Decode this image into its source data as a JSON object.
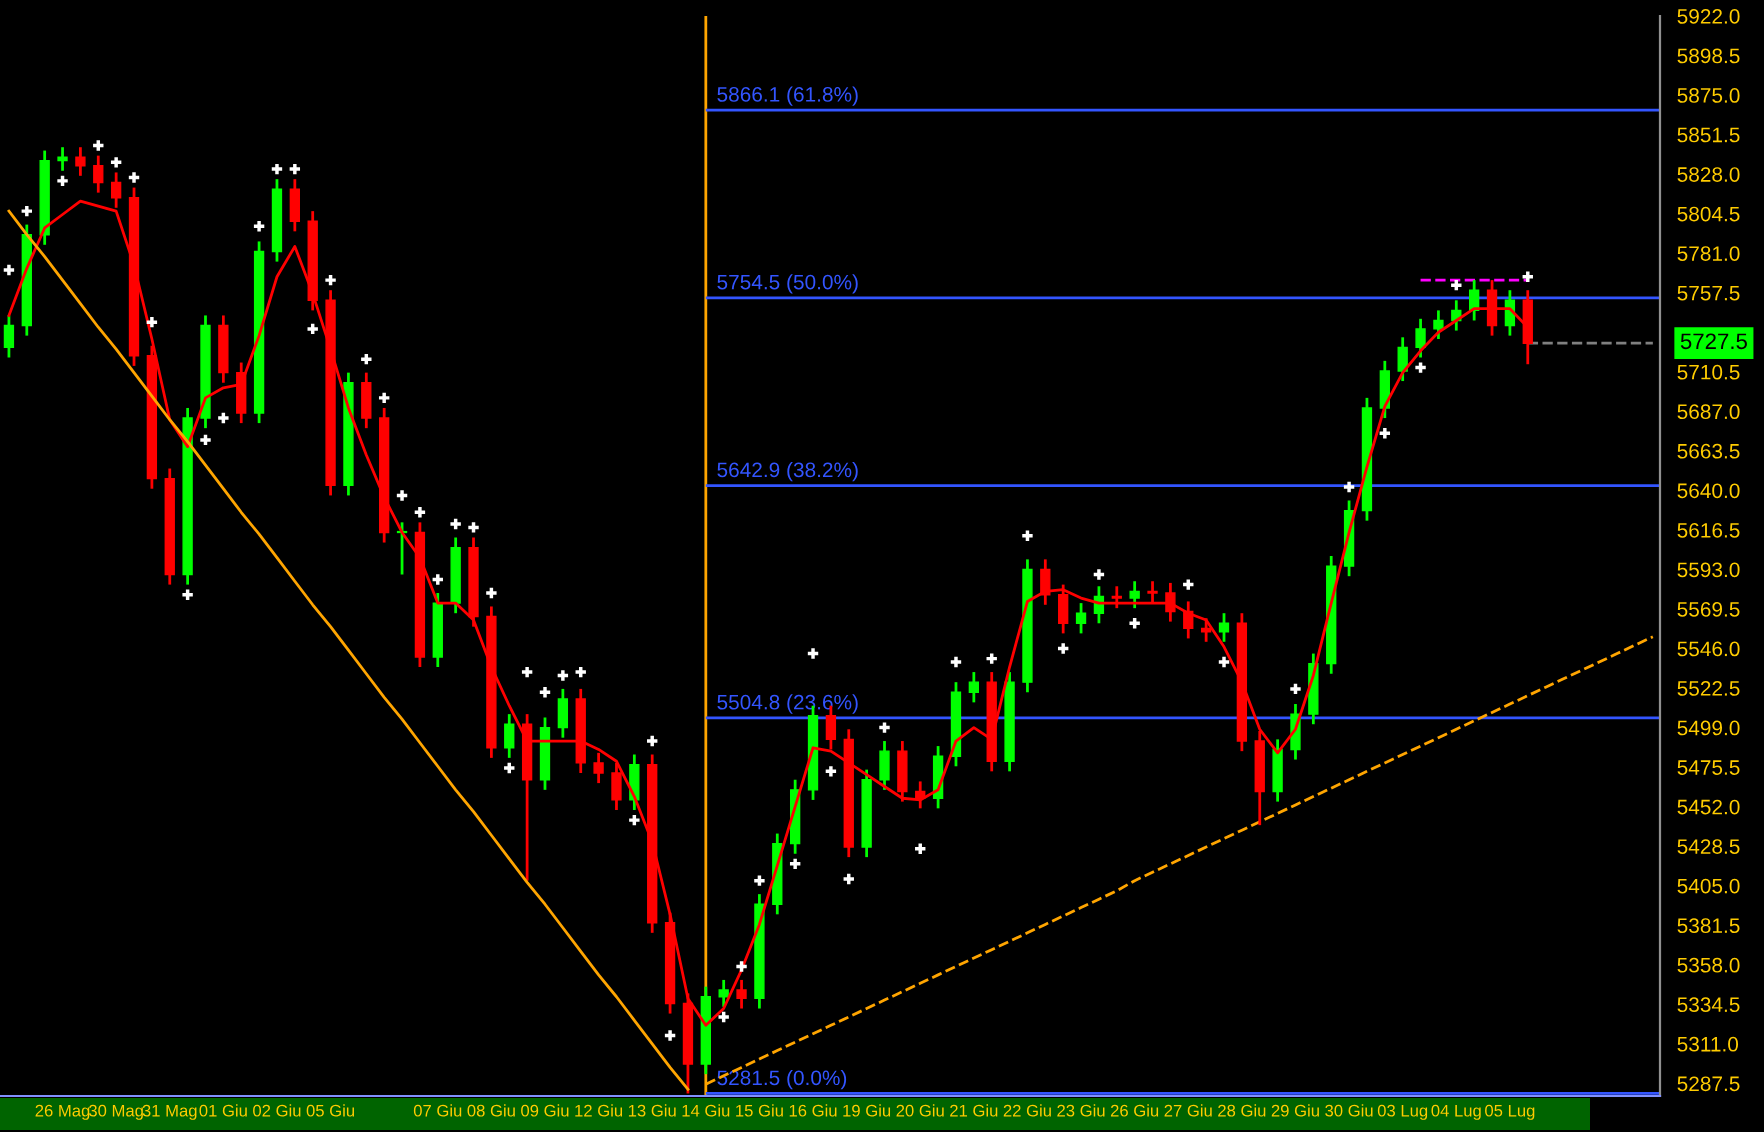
{
  "chart_data": {
    "type": "candlestick",
    "categories": [
      null,
      null,
      null,
      "26 Mag",
      null,
      null,
      "30 Mag",
      null,
      null,
      "31 Mag",
      null,
      null,
      "01 Giu",
      null,
      null,
      "02 Giu",
      null,
      null,
      "05 Giu",
      null,
      null,
      null,
      null,
      null,
      "07 Giu",
      null,
      null,
      "08 Giu",
      null,
      null,
      "09 Giu",
      null,
      null,
      "12 Giu",
      null,
      null,
      "13 Giu",
      null,
      null,
      "14 Giu",
      null,
      null,
      "15 Giu",
      null,
      null,
      "16 Giu",
      null,
      null,
      "19 Giu",
      null,
      null,
      "20 Giu",
      null,
      null,
      "21 Giu",
      null,
      null,
      "22 Giu",
      null,
      null,
      "23 Giu",
      null,
      null,
      "26 Giu",
      null,
      null,
      "27 Giu",
      null,
      null,
      "28 Giu",
      null,
      null,
      "29 Giu",
      null,
      null,
      "30 Giu",
      null,
      null,
      "03 Lug",
      null,
      null,
      "04 Lug",
      null,
      null,
      "05 Lug",
      null,
      null,
      null,
      null,
      null,
      null,
      null,
      null
    ],
    "ohlc": [
      [
        5725,
        5744,
        5719,
        5738
      ],
      [
        5738,
        5798,
        5732,
        5792
      ],
      [
        5792,
        5842,
        5786,
        5836
      ],
      [
        5836,
        5844,
        5830,
        5838
      ],
      [
        5838,
        5844,
        5827,
        5833
      ],
      [
        5833,
        5839,
        5817,
        5823
      ],
      [
        5823,
        5829,
        5808,
        5814
      ],
      [
        5814,
        5820,
        5714,
        5720
      ],
      [
        5720,
        5726,
        5641,
        5647
      ],
      [
        5647,
        5653,
        5584,
        5590
      ],
      [
        5590,
        5689,
        5584,
        5683
      ],
      [
        5683,
        5744,
        5677,
        5738
      ],
      [
        5738,
        5744,
        5704,
        5710
      ],
      [
        5710,
        5716,
        5680,
        5686
      ],
      [
        5686,
        5788,
        5680,
        5782
      ],
      [
        5782,
        5825,
        5776,
        5819
      ],
      [
        5819,
        5825,
        5794,
        5800
      ],
      [
        5800,
        5806,
        5747,
        5753
      ],
      [
        5753,
        5759,
        5637,
        5643
      ],
      [
        5643,
        5710,
        5637,
        5704
      ],
      [
        5704,
        5710,
        5677,
        5683
      ],
      [
        5683,
        5689,
        5609,
        5615
      ],
      [
        5615,
        5621,
        5590,
        5615
      ],
      [
        5615,
        5621,
        5535,
        5541
      ],
      [
        5541,
        5579,
        5535,
        5573
      ],
      [
        5573,
        5612,
        5567,
        5606
      ],
      [
        5606,
        5612,
        5559,
        5565
      ],
      [
        5565,
        5571,
        5481,
        5487
      ],
      [
        5487,
        5507,
        5481,
        5501
      ],
      [
        5501,
        5507,
        5408,
        5468
      ],
      [
        5468,
        5505,
        5462,
        5499
      ],
      [
        5499,
        5522,
        5493,
        5516
      ],
      [
        5516,
        5522,
        5472,
        5478
      ],
      [
        5478,
        5484,
        5466,
        5472
      ],
      [
        5472,
        5478,
        5450,
        5456
      ],
      [
        5456,
        5483,
        5450,
        5477
      ],
      [
        5477,
        5483,
        5377,
        5383
      ],
      [
        5383,
        5389,
        5329,
        5335
      ],
      [
        5335,
        5341,
        5281.5,
        5299
      ],
      [
        5299,
        5345,
        5293,
        5339
      ],
      [
        5339,
        5349,
        5333,
        5343
      ],
      [
        5343,
        5349,
        5332,
        5338
      ],
      [
        5338,
        5400,
        5332,
        5394
      ],
      [
        5394,
        5436,
        5388,
        5430
      ],
      [
        5430,
        5468,
        5424,
        5462
      ],
      [
        5462,
        5512,
        5456,
        5506
      ],
      [
        5506,
        5512,
        5486,
        5492
      ],
      [
        5492,
        5498,
        5422,
        5428
      ],
      [
        5428,
        5474,
        5422,
        5468
      ],
      [
        5468,
        5491,
        5462,
        5485
      ],
      [
        5485,
        5491,
        5455,
        5461
      ],
      [
        5461,
        5467,
        5451,
        5457
      ],
      [
        5457,
        5488,
        5451,
        5482
      ],
      [
        5482,
        5526,
        5476,
        5520
      ],
      [
        5520,
        5532,
        5514,
        5526
      ],
      [
        5526,
        5532,
        5473,
        5479
      ],
      [
        5479,
        5532,
        5473,
        5526
      ],
      [
        5526,
        5599,
        5520,
        5593
      ],
      [
        5593,
        5599,
        5572,
        5578
      ],
      [
        5578,
        5584,
        5555,
        5561
      ],
      [
        5561,
        5573,
        5555,
        5567
      ],
      [
        5567,
        5583,
        5561,
        5577
      ],
      [
        5577,
        5583,
        5570,
        5576
      ],
      [
        5576,
        5586,
        5570,
        5580
      ],
      [
        5580,
        5586,
        5573,
        5579
      ],
      [
        5579,
        5585,
        5562,
        5568
      ],
      [
        5568,
        5574,
        5552,
        5558
      ],
      [
        5558,
        5564,
        5550,
        5556
      ],
      [
        5556,
        5567,
        5550,
        5561
      ],
      [
        5561,
        5567,
        5485,
        5491
      ],
      [
        5491,
        5497,
        5441,
        5461
      ],
      [
        5461,
        5492,
        5455,
        5486
      ],
      [
        5486,
        5513,
        5480,
        5507
      ],
      [
        5507,
        5543,
        5501,
        5537
      ],
      [
        5537,
        5601,
        5531,
        5595
      ],
      [
        5595,
        5634,
        5589,
        5628
      ],
      [
        5628,
        5695,
        5622,
        5689
      ],
      [
        5689,
        5717,
        5683,
        5711
      ],
      [
        5711,
        5731,
        5705,
        5725
      ],
      [
        5725,
        5742,
        5719,
        5736
      ],
      [
        5736,
        5747,
        5730,
        5741
      ],
      [
        5741,
        5753,
        5735,
        5747
      ],
      [
        5747,
        5765,
        5741,
        5759
      ],
      [
        5759,
        5765,
        5732,
        5738
      ],
      [
        5738,
        5759,
        5732,
        5753
      ],
      [
        5753,
        5759,
        5715,
        5727.5
      ],
      null,
      null,
      null,
      null,
      null,
      null,
      null
    ],
    "series": [
      {
        "type": "line",
        "color": "#ff0000",
        "line_style": "solid",
        "marker": "none",
        "values": [
          5744,
          5772,
          5796,
          5804,
          5812,
          5809,
          5806,
          5774,
          5730,
          5682,
          5666,
          5695,
          5701,
          5703,
          5732,
          5767,
          5785,
          5757,
          5724,
          5689,
          5661,
          5636,
          5615,
          5600,
          5573,
          5573,
          5563,
          5535,
          5512,
          5491,
          5491,
          5491,
          5491,
          5486,
          5479,
          5458,
          5431,
          5388,
          5338,
          5322,
          5332,
          5355,
          5382,
          5417,
          5452,
          5487,
          5485,
          5478,
          5471,
          5464,
          5457,
          5456,
          5462,
          5491,
          5499,
          5492,
          5535,
          5574,
          5580,
          5581,
          5576,
          5573,
          5573,
          5573,
          5573,
          5573,
          5567,
          5563,
          5547,
          5526,
          5498,
          5484,
          5498,
          5530,
          5573,
          5615,
          5654,
          5690,
          5710,
          5723,
          5734,
          5741,
          5748,
          5748,
          5748,
          5737,
          null,
          null,
          null,
          null,
          null,
          null,
          null
        ]
      },
      {
        "type": "scatter",
        "color": "#ffffff",
        "marker": "cross",
        "values": [
          5771,
          5806,
          null,
          5824,
          null,
          5845,
          5835,
          5826,
          5740,
          null,
          5578,
          5670,
          5683,
          null,
          5797,
          5831,
          5831,
          5736,
          5765,
          null,
          5718,
          5695,
          5637,
          5627,
          5587,
          5620,
          5618,
          5579,
          5475,
          5532,
          5520,
          5530,
          5532,
          null,
          null,
          5444,
          5491,
          5316,
          null,
          null,
          5327,
          5357,
          5408,
          null,
          5418,
          5543,
          5473,
          5409,
          null,
          5499,
          null,
          5427,
          null,
          5538,
          null,
          5540,
          null,
          5613,
          null,
          5546,
          null,
          5590,
          null,
          5561,
          null,
          null,
          5584,
          null,
          5538,
          null,
          null,
          null,
          5522,
          null,
          null,
          5642,
          null,
          5674,
          null,
          5713,
          null,
          5762,
          null,
          null,
          null,
          5767,
          null,
          null,
          null,
          null,
          null,
          null,
          null
        ]
      },
      {
        "type": "line",
        "color": "#ffa500",
        "line_style": "solid",
        "marker": "none",
        "values": [
          5806,
          5792,
          5779,
          5765,
          5751,
          5737,
          5724,
          5710,
          5696,
          5682,
          5669,
          5655,
          5641,
          5627,
          5614,
          5600,
          5586,
          5572,
          5559,
          5545,
          5531,
          5517,
          5504,
          5490,
          5476,
          5462,
          5449,
          5435,
          5421,
          5407,
          5394,
          5380,
          5366,
          5352,
          5339,
          5325,
          5311,
          5297,
          5284,
          null,
          null,
          null,
          null,
          null,
          null,
          null,
          null,
          null,
          null,
          null,
          null,
          null,
          null,
          null,
          null,
          null,
          null,
          null,
          null,
          null,
          null,
          null,
          null,
          null,
          null,
          null,
          null,
          null,
          null,
          null,
          null,
          null,
          null,
          null,
          null,
          null,
          null,
          null,
          null,
          null,
          null,
          null,
          null,
          null,
          null,
          null,
          null,
          null,
          null,
          null,
          null,
          null,
          null
        ]
      },
      {
        "type": "line",
        "color": "#ffa500",
        "line_style": "dashed",
        "marker": "none",
        "values": [
          null,
          null,
          null,
          null,
          null,
          null,
          null,
          null,
          null,
          null,
          null,
          null,
          null,
          null,
          null,
          null,
          null,
          null,
          null,
          null,
          null,
          null,
          null,
          null,
          null,
          null,
          null,
          null,
          null,
          null,
          null,
          null,
          null,
          null,
          null,
          null,
          null,
          null,
          null,
          5287,
          5292,
          5297,
          5302,
          5307,
          5312,
          5317,
          5322,
          5327,
          5332,
          5337,
          5342,
          5347,
          5352,
          5357,
          5362,
          5367,
          5372,
          5377,
          5382,
          5387,
          5392,
          5397,
          5402,
          5408,
          5413,
          5418,
          5423,
          5428,
          5433,
          5438,
          5443,
          5448,
          5453,
          5458,
          5463,
          5468,
          5473,
          5478,
          5483,
          5488,
          5493,
          5498,
          5503,
          5508,
          5513,
          5518,
          5523,
          5528,
          5533,
          5538,
          5543,
          5548,
          5553
        ]
      },
      {
        "type": "line",
        "color": "#ff00ff",
        "line_style": "dashed",
        "marker": "none",
        "values": [
          null,
          null,
          null,
          null,
          null,
          null,
          null,
          null,
          null,
          null,
          null,
          null,
          null,
          null,
          null,
          null,
          null,
          null,
          null,
          null,
          null,
          null,
          null,
          null,
          null,
          null,
          null,
          null,
          null,
          null,
          null,
          null,
          null,
          null,
          null,
          null,
          null,
          null,
          null,
          null,
          null,
          null,
          null,
          null,
          null,
          null,
          null,
          null,
          null,
          null,
          null,
          null,
          null,
          null,
          null,
          null,
          null,
          null,
          null,
          null,
          null,
          null,
          null,
          null,
          null,
          null,
          null,
          null,
          null,
          null,
          null,
          null,
          null,
          null,
          null,
          null,
          null,
          null,
          null,
          5765,
          5765,
          5765,
          5765,
          5765,
          5765,
          5765,
          null,
          null,
          null,
          null,
          null,
          null,
          null
        ]
      },
      {
        "type": "line",
        "color": "#808080",
        "line_style": "dashed",
        "marker": "none",
        "values": [
          null,
          null,
          null,
          null,
          null,
          null,
          null,
          null,
          null,
          null,
          null,
          null,
          null,
          null,
          null,
          null,
          null,
          null,
          null,
          null,
          null,
          null,
          null,
          null,
          null,
          null,
          null,
          null,
          null,
          null,
          null,
          null,
          null,
          null,
          null,
          null,
          null,
          null,
          null,
          null,
          null,
          null,
          null,
          null,
          null,
          null,
          null,
          null,
          null,
          null,
          null,
          null,
          null,
          null,
          null,
          null,
          null,
          null,
          null,
          null,
          null,
          null,
          null,
          null,
          null,
          null,
          null,
          null,
          null,
          null,
          null,
          null,
          null,
          null,
          null,
          null,
          null,
          null,
          null,
          null,
          null,
          null,
          null,
          null,
          null,
          5727.5,
          5727.5,
          5727.5,
          5727.5,
          5727.5,
          5727.5,
          5727.5,
          5727.5
        ]
      }
    ],
    "ref_lines": [
      {
        "axis": "x",
        "value": "14 Giu",
        "label": null,
        "color": "#ffa500",
        "line_style": "solid"
      },
      {
        "axis": "y",
        "value": 5866.1,
        "label": "5866.1 (61.8%)",
        "color": "#3355ff",
        "line_style": "solid"
      },
      {
        "axis": "y",
        "value": 5754.5,
        "label": "5754.5 (50.0%)",
        "color": "#3355ff",
        "line_style": "solid"
      },
      {
        "axis": "y",
        "value": 5642.9,
        "label": "5642.9 (38.2%)",
        "color": "#3355ff",
        "line_style": "solid"
      },
      {
        "axis": "y",
        "value": 5504.8,
        "label": "5504.8 (23.6%)",
        "color": "#3355ff",
        "line_style": "solid"
      },
      {
        "axis": "y",
        "value": 5281.5,
        "label": "5281.5 (0.0%)",
        "color": "#3355ff",
        "line_style": "solid"
      }
    ],
    "annotations": [
      "5727.5"
    ],
    "ylim": [
      5280,
      5922
    ],
    "yticks": [
      5287.5,
      {
        "value": 5311,
        "label": "5311.0"
      },
      5334.5,
      {
        "value": 5358,
        "label": "5358.0"
      },
      5381.5,
      {
        "value": 5405,
        "label": "5405.0"
      },
      5428.5,
      {
        "value": 5452,
        "label": "5452.0"
      },
      5475.5,
      {
        "value": 5499,
        "label": "5499.0"
      },
      5522.5,
      {
        "value": 5546,
        "label": "5546.0"
      },
      5569.5,
      {
        "value": 5593,
        "label": "5593.0"
      },
      5616.5,
      {
        "value": 5640,
        "label": "5640.0"
      },
      5663.5,
      {
        "value": 5687,
        "label": "5687.0"
      },
      5710.5,
      5757.5,
      {
        "value": 5781,
        "label": "5781.0"
      },
      5804.5,
      {
        "value": 5828,
        "label": "5828.0"
      },
      5851.5,
      {
        "value": 5875,
        "label": "5875.0"
      },
      5898.5,
      {
        "value": 5922,
        "label": "5922.0"
      }
    ],
    "grid": false,
    "legend": false
  }
}
